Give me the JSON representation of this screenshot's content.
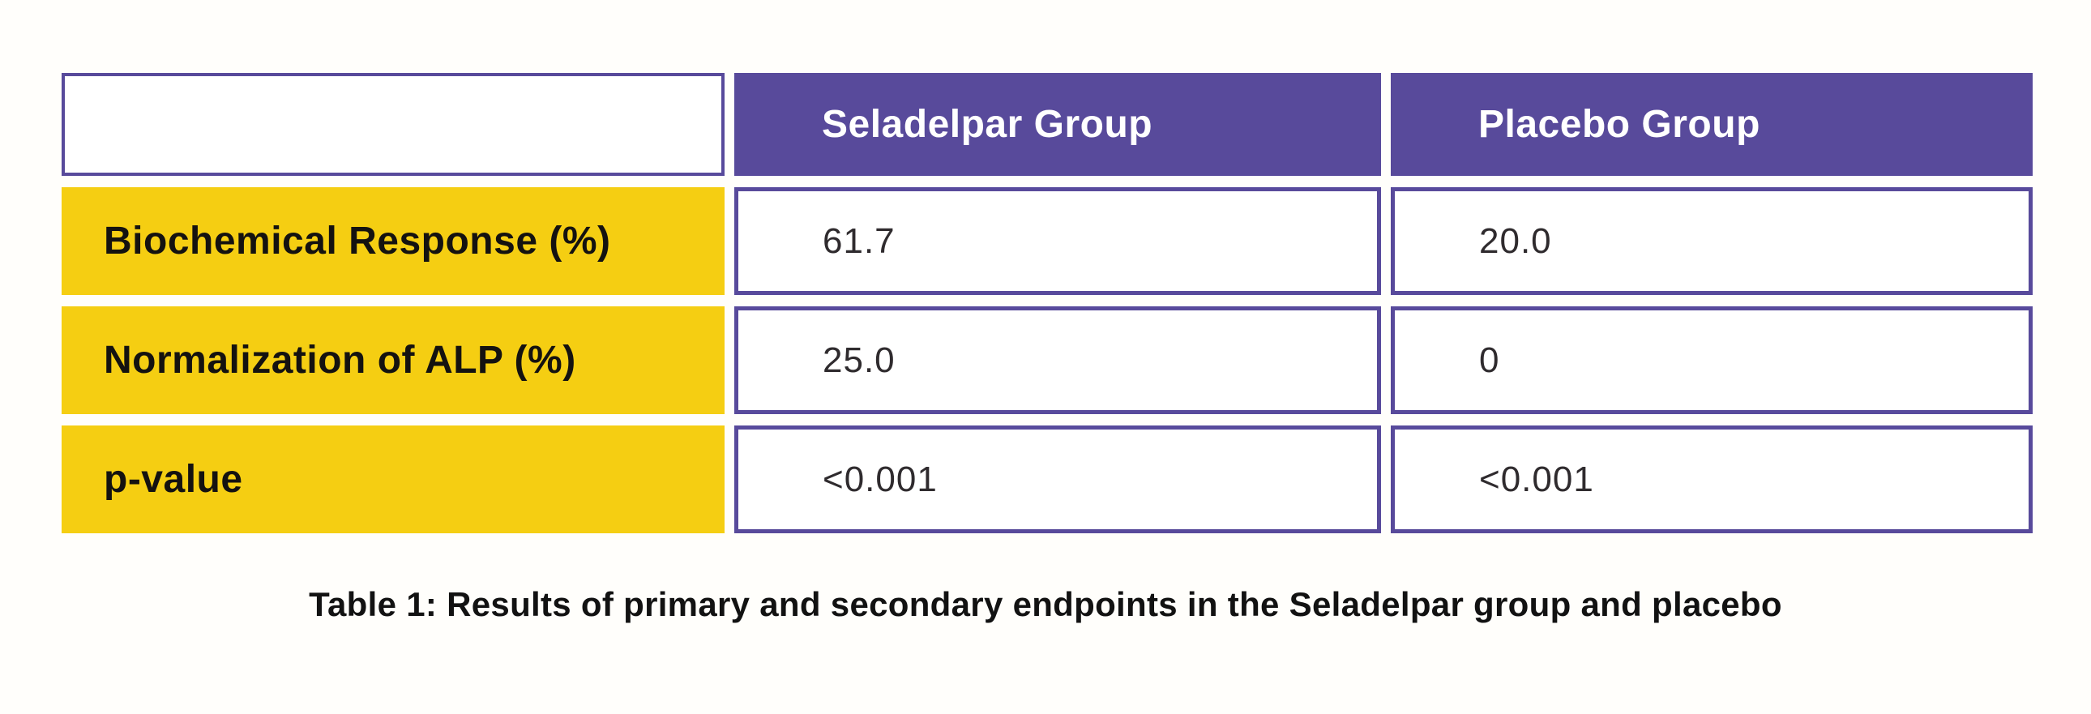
{
  "page": {
    "background_color": "#FFFEFB"
  },
  "colors": {
    "header_purple": "#584A9B",
    "cell_border_purple": "#584A9B",
    "label_yellow": "#F5CE12",
    "header_text": "#FFFFFF",
    "label_text": "#141210",
    "value_text": "#2F2B2E",
    "caption_text": "#121212"
  },
  "table": {
    "columns": [
      "",
      "Seladelpar Group",
      "Placebo Group"
    ],
    "rows": [
      {
        "label": "Biochemical Response (%)",
        "seladelpar": "61.7",
        "placebo": "20.0"
      },
      {
        "label": "Normalization of ALP (%)",
        "seladelpar": "25.0",
        "placebo": "0"
      },
      {
        "label": "p-value",
        "seladelpar": "<0.001",
        "placebo": "<0.001"
      }
    ],
    "caption": "Table 1: Results of primary and secondary endpoints in the Seladelpar group and placebo"
  },
  "chart_data": {
    "type": "table",
    "title": "Table 1: Results of primary and secondary endpoints in the Seladelpar group and placebo",
    "columns": [
      "",
      "Seladelpar Group",
      "Placebo Group"
    ],
    "rows": [
      [
        "Biochemical Response (%)",
        "61.7",
        "20.0"
      ],
      [
        "Normalization of ALP (%)",
        "25.0",
        "0"
      ],
      [
        "p-value",
        "<0.001",
        "<0.001"
      ]
    ],
    "numeric_values": {
      "biochemical_response_pct": {
        "seladelpar": 61.7,
        "placebo": 20.0
      },
      "normalization_of_alp_pct": {
        "seladelpar": 25.0,
        "placebo": 0
      },
      "p_value": {
        "seladelpar": "<0.001",
        "placebo": "<0.001"
      }
    }
  }
}
